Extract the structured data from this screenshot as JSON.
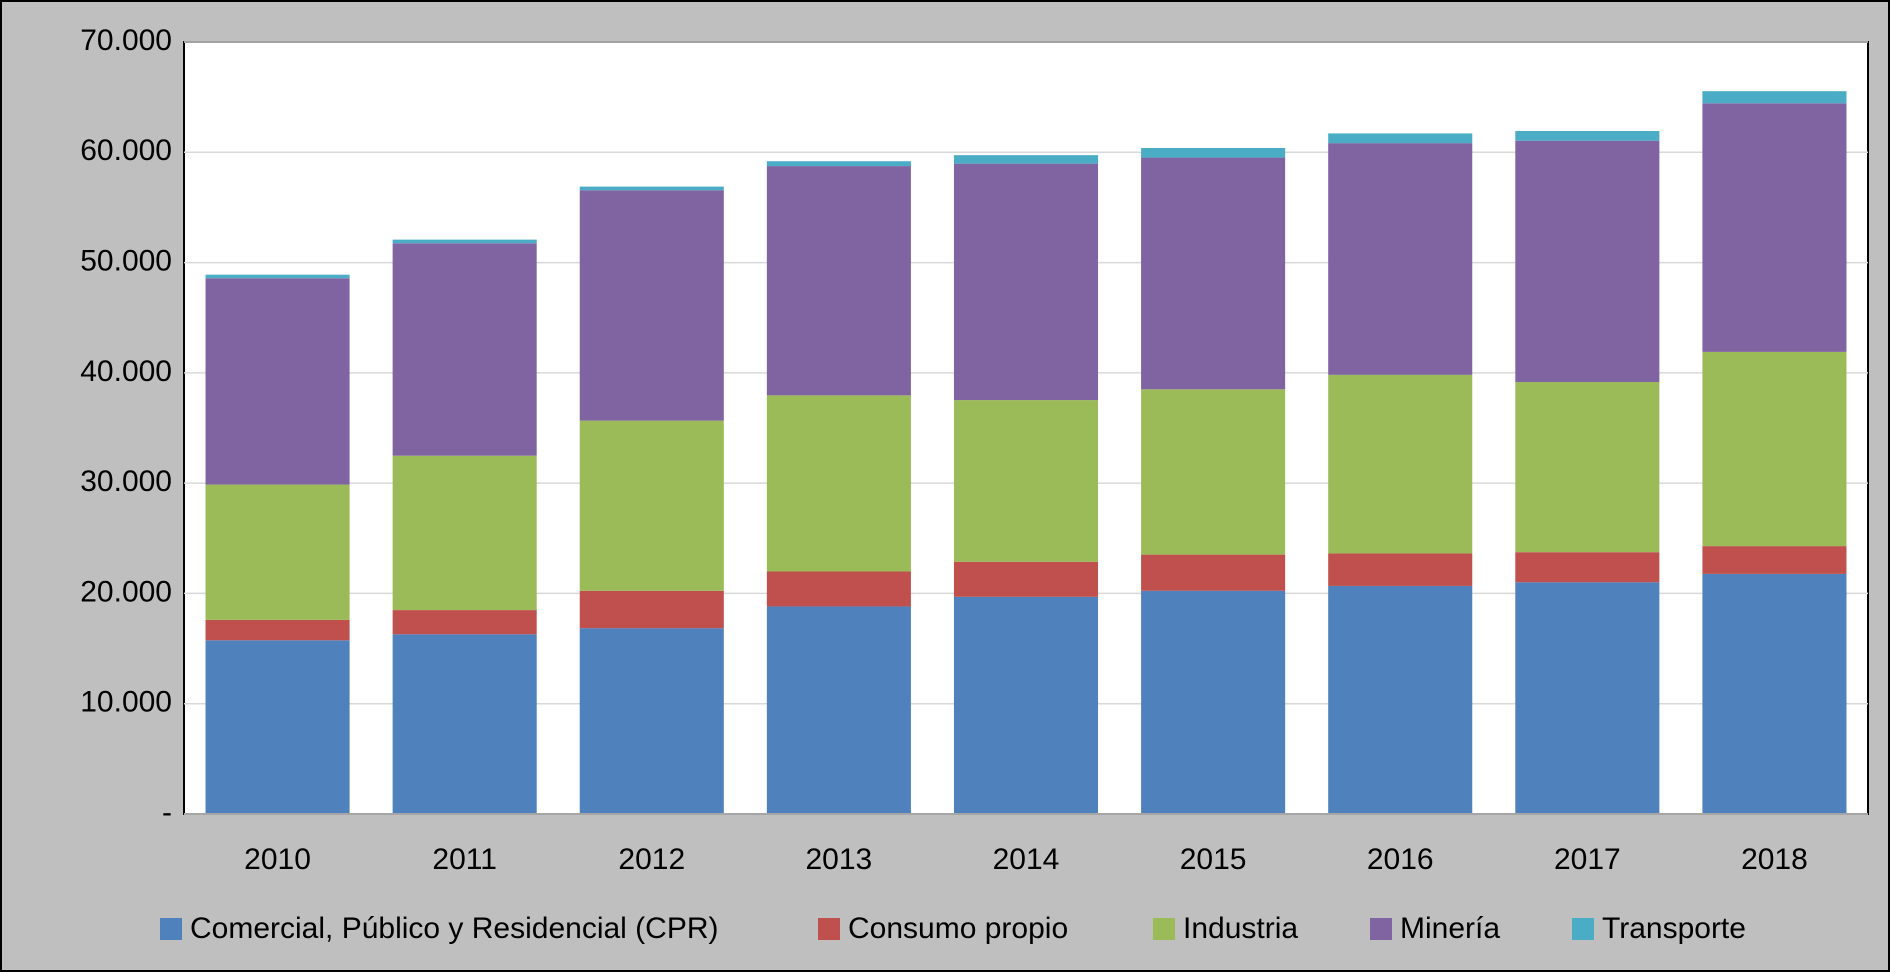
{
  "chart_data": {
    "type": "stacked_bar",
    "categories": [
      "2010",
      "2011",
      "2012",
      "2013",
      "2014",
      "2015",
      "2016",
      "2017",
      "2018"
    ],
    "series": [
      {
        "name": "Comercial, Público y Residencial (CPR)",
        "color": "#4f81bd",
        "values": [
          15750,
          16300,
          16850,
          18820,
          19690,
          20240,
          20680,
          21010,
          21770
        ]
      },
      {
        "name": "Consumo propio",
        "color": "#c0504d",
        "values": [
          1850,
          2190,
          3390,
          3170,
          3180,
          3280,
          2950,
          2730,
          2520
        ]
      },
      {
        "name": "Industria",
        "color": "#9bbb59",
        "values": [
          12270,
          14000,
          15430,
          15970,
          14660,
          14990,
          16190,
          15430,
          17610
        ]
      },
      {
        "name": "Minería",
        "color": "#8064a2",
        "values": [
          18710,
          19260,
          20890,
          20790,
          21440,
          21010,
          21010,
          21880,
          22540
        ]
      },
      {
        "name": "Transporte",
        "color": "#4bacc6",
        "values": [
          320,
          330,
          330,
          440,
          770,
          870,
          880,
          880,
          1100
        ]
      }
    ],
    "ylim": [
      0,
      70000
    ],
    "yticks": [
      {
        "value": 0,
        "label": "-"
      },
      {
        "value": 10000,
        "label": "10.000"
      },
      {
        "value": 20000,
        "label": "20.000"
      },
      {
        "value": 30000,
        "label": "30.000"
      },
      {
        "value": 40000,
        "label": "40.000"
      },
      {
        "value": 50000,
        "label": "50.000"
      },
      {
        "value": 60000,
        "label": "60.000"
      },
      {
        "value": 70000,
        "label": "70.000"
      }
    ],
    "grid": true,
    "legend": "bottom"
  }
}
